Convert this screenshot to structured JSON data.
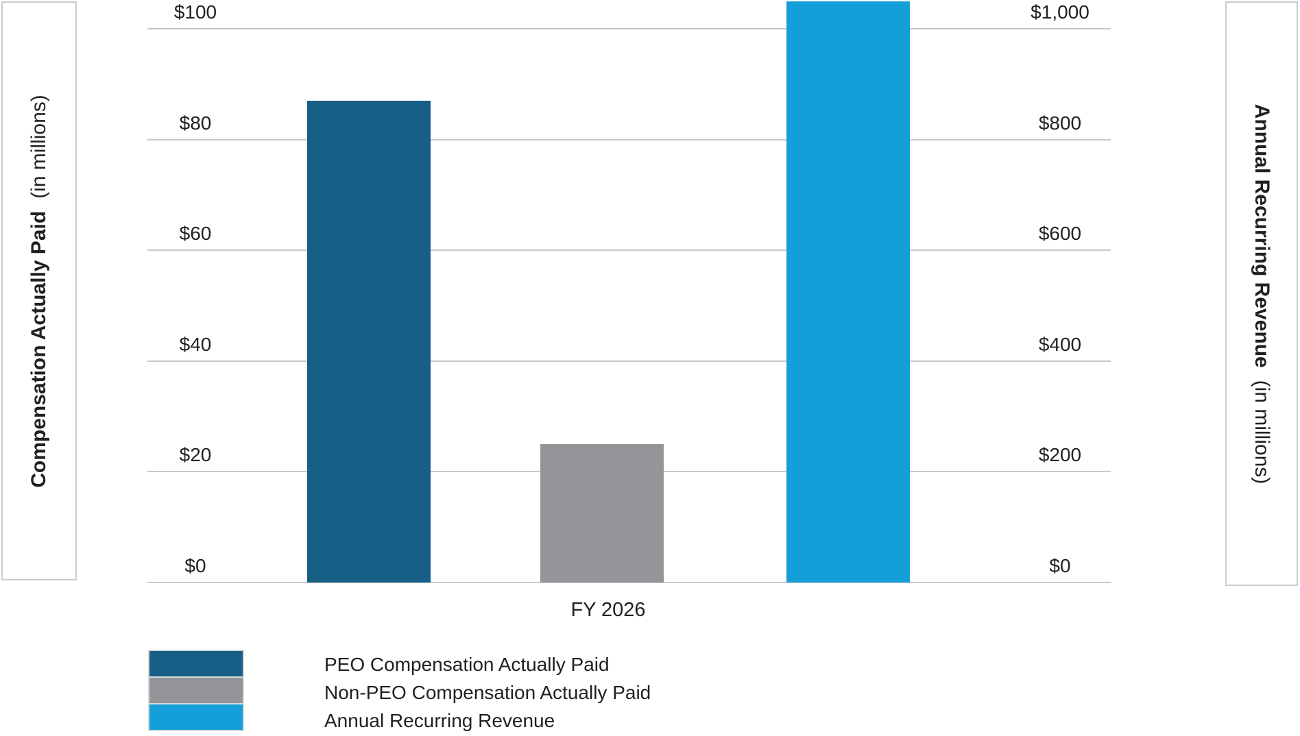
{
  "chart_data": {
    "type": "bar",
    "title": "",
    "categories": [
      "FY 2026"
    ],
    "series": [
      {
        "name": "PEO Compensation Actually Paid",
        "axis": "left",
        "values": [
          87
        ],
        "color": "#175f86"
      },
      {
        "name": "Non-PEO Compensation Actually Paid",
        "axis": "left",
        "values": [
          25
        ],
        "color": "#939598"
      },
      {
        "name": "Annual Recurring Revenue",
        "axis": "right",
        "values": [
          1050
        ],
        "color": "#149fd9"
      }
    ],
    "left_axis": {
      "label": "Compensation Actually Paid",
      "label_note": "(in millions)",
      "range": [
        0,
        100
      ],
      "ticks": [
        0,
        20,
        40,
        60,
        80,
        100
      ],
      "tick_labels": [
        "$0",
        "$20",
        "$40",
        "$60",
        "$80",
        "$100"
      ]
    },
    "right_axis": {
      "label": "Annual Recurring Revenue",
      "label_note": "(in millions)",
      "range": [
        0,
        1000
      ],
      "ticks": [
        0,
        200,
        400,
        600,
        800,
        1000
      ],
      "tick_labels": [
        "$0",
        "$200",
        "$400",
        "$600",
        "$800",
        "$1,000"
      ]
    },
    "grid": true,
    "legend_position": "bottom-left",
    "colors": {
      "grid": "#c7c8ca",
      "text": "#231f20",
      "panel_border": "#c9cbcd",
      "legend_swatch_border": "#d9dadb"
    }
  }
}
